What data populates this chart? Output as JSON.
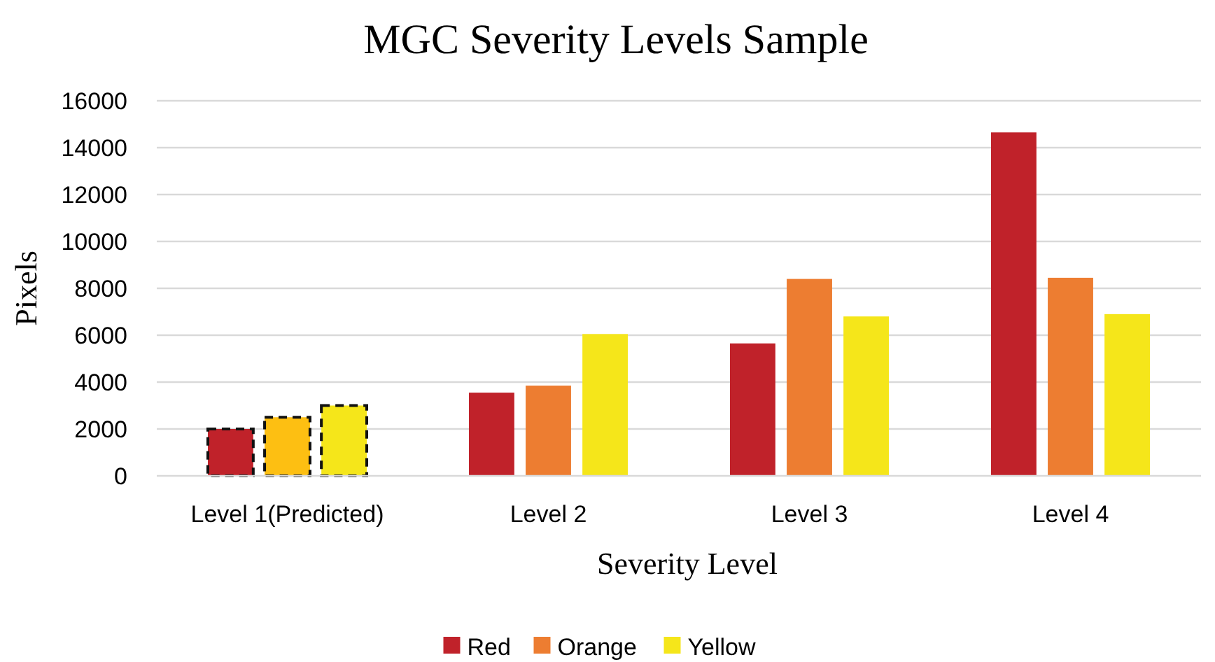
{
  "chart_data": {
    "type": "bar",
    "title": "MGC Severity Levels Sample",
    "xlabel": "Severity Level",
    "ylabel": "Pixels",
    "categories": [
      "Level 1(Predicted)",
      "Level 2",
      "Level 3",
      "Level 4"
    ],
    "series": [
      {
        "name": "Red",
        "color": "#c0222a",
        "values": [
          2000,
          3550,
          5650,
          14650
        ]
      },
      {
        "name": "Orange",
        "color": "#ed7d31",
        "colors": [
          "#fdbf12",
          "#ed7d31",
          "#ed7d31",
          "#ed7d31"
        ],
        "values": [
          2500,
          3850,
          8400,
          8450
        ]
      },
      {
        "name": "Yellow",
        "color": "#f5e61a",
        "values": [
          3000,
          6050,
          6800,
          6900
        ]
      }
    ],
    "ylim": [
      0,
      16000
    ],
    "yticks": [
      0,
      2000,
      4000,
      6000,
      8000,
      10000,
      12000,
      14000,
      16000
    ],
    "grid": "y",
    "legend": "bottom",
    "line_style": "dashed"
  }
}
